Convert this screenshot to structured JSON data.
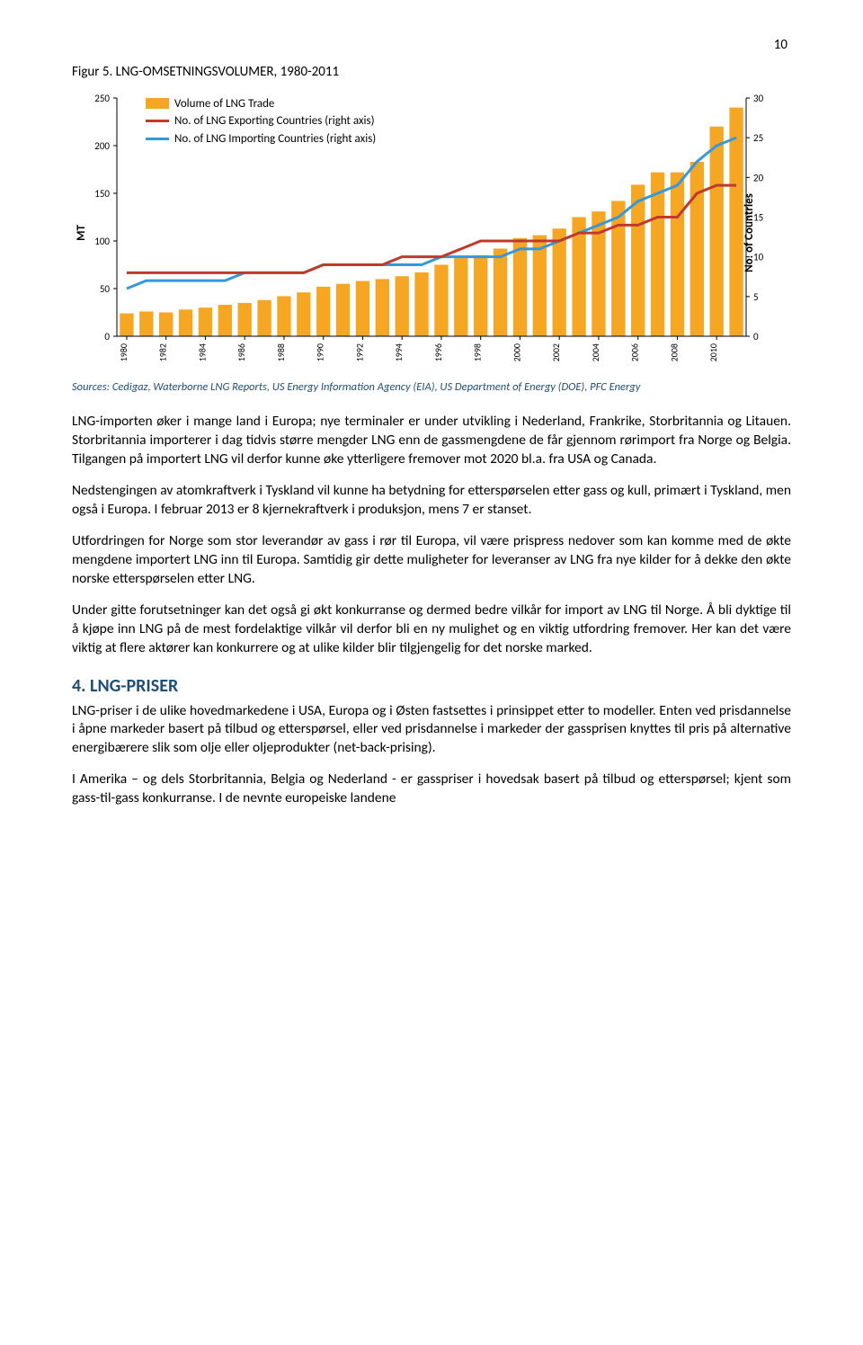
{
  "page_number": "10",
  "figure_caption": "Figur 5. LNG-OMSETNINGSVOLUMER, 1980-2011",
  "chart": {
    "type": "bar+line",
    "background_color": "#ffffff",
    "axis_color": "#000000",
    "years": [
      "1980",
      "1981",
      "1982",
      "1983",
      "1984",
      "1985",
      "1986",
      "1987",
      "1988",
      "1989",
      "1990",
      "1991",
      "1992",
      "1993",
      "1994",
      "1995",
      "1996",
      "1997",
      "1998",
      "1999",
      "2000",
      "2001",
      "2002",
      "2003",
      "2004",
      "2005",
      "2006",
      "2007",
      "2008",
      "2009",
      "2010",
      "2011"
    ],
    "x_tick_years": [
      "1980",
      "1982",
      "1984",
      "1986",
      "1988",
      "1990",
      "1992",
      "1994",
      "1996",
      "1998",
      "2000",
      "2002",
      "2004",
      "2006",
      "2008",
      "2010"
    ],
    "bars": {
      "color": "#f5a623",
      "values": [
        24,
        26,
        25,
        28,
        30,
        33,
        35,
        38,
        42,
        46,
        52,
        55,
        58,
        60,
        63,
        67,
        75,
        82,
        85,
        92,
        103,
        106,
        113,
        125,
        131,
        142,
        159,
        172,
        172,
        183,
        220,
        240
      ]
    },
    "line_export": {
      "color": "#c0392b",
      "width": 3,
      "values": [
        8,
        8,
        8,
        8,
        8,
        8,
        8,
        8,
        8,
        8,
        9,
        9,
        9,
        9,
        10,
        10,
        10,
        11,
        12,
        12,
        12,
        12,
        12,
        13,
        13,
        14,
        14,
        15,
        15,
        18,
        19,
        19
      ]
    },
    "line_import": {
      "color": "#3498db",
      "width": 3,
      "values": [
        6,
        7,
        7,
        7,
        7,
        7,
        8,
        8,
        8,
        8,
        9,
        9,
        9,
        9,
        9,
        9,
        10,
        10,
        10,
        10,
        11,
        11,
        12,
        13,
        14,
        15,
        17,
        18,
        19,
        22,
        24,
        25
      ]
    },
    "y_left": {
      "label": "MT",
      "min": 0,
      "max": 250,
      "ticks": [
        0,
        50,
        100,
        150,
        200,
        250
      ]
    },
    "y_right": {
      "label": "No. of Countries",
      "min": 0,
      "max": 30,
      "ticks": [
        0,
        5,
        10,
        15,
        20,
        25,
        30
      ]
    },
    "legend": {
      "bar_label": "Volume of LNG Trade",
      "export_label": "No. of LNG Exporting Countries (right axis)",
      "import_label": "No. of LNG Importing Countries (right axis)"
    }
  },
  "source_note": "Sources: Cedigaz, Waterborne LNG Reports, US Energy Information Agency (EIA), US Department of Energy (DOE), PFC Energy",
  "paragraphs": {
    "p1": "LNG-importen øker i mange land i Europa; nye terminaler er under utvikling i Nederland, Frankrike, Storbritannia og Litauen. Storbritannia importerer i dag tidvis større mengder LNG enn de gassmengdene de får gjennom rørimport fra Norge og Belgia. Tilgangen på importert LNG vil derfor kunne øke ytterligere fremover mot 2020 bl.a. fra USA og Canada.",
    "p2": "Nedstengingen av atomkraftverk i Tyskland vil kunne ha betydning for etterspørselen etter gass og kull, primært i Tyskland, men også i Europa. I februar 2013 er 8 kjernekraftverk i produksjon, mens 7 er stanset.",
    "p3": "Utfordringen for Norge som stor leverandør av gass i rør til Europa, vil være prispress nedover som kan komme med de økte mengdene importert LNG inn til Europa. Samtidig gir dette muligheter for leveranser av LNG fra nye kilder for å dekke den økte norske etterspørselen etter LNG.",
    "p4": "Under gitte forutsetninger kan det også gi økt konkurranse og dermed bedre vilkår for import av LNG til Norge. Å bli dyktige til å kjøpe inn LNG på de mest fordelaktige vilkår vil derfor bli en ny mulighet og en viktig utfordring fremover. Her kan det være viktig at flere aktører kan konkurrere og at ulike kilder blir tilgjengelig for det norske marked."
  },
  "section4": {
    "heading": "4.  LNG-PRISER",
    "p5": "LNG-priser i de ulike hovedmarkedene i USA, Europa og i Østen fastsettes i prinsippet etter to modeller. Enten ved prisdannelse i åpne markeder basert på tilbud og etterspørsel, eller ved prisdannelse i markeder der gassprisen knyttes til pris på alternative energibærere slik som olje eller oljeprodukter (net-back-prising).",
    "p6": "I Amerika – og dels Storbritannia, Belgia og Nederland - er gasspriser i hovedsak basert på tilbud og etterspørsel; kjent som gass-til-gass konkurranse. I de nevnte europeiske landene"
  }
}
